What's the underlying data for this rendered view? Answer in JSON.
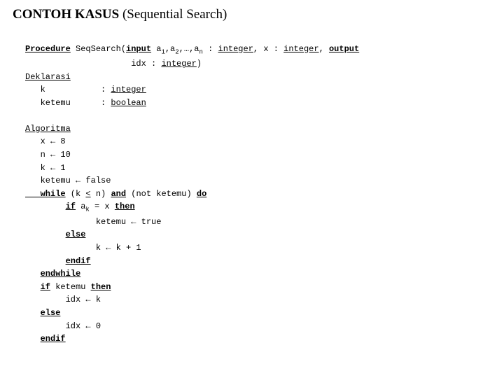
{
  "title": {
    "kasus": "CONTOH KASUS",
    "paren": " (Sequential Search)"
  },
  "proc": {
    "kw_procedure": "Procedure",
    "name": " SeqSearch(",
    "kw_input": "input",
    "sig1_a": " a",
    "sig1_sub1": "1",
    "sig1_c1": ",a",
    "sig1_sub2": "2",
    "sig1_c2": ",…,a",
    "sig1_subn": "n",
    "sig1_colon": " : ",
    "type_integer1": "integer",
    "sig1_c3": ", x : ",
    "type_integer2": "integer",
    "sig1_c4": ", ",
    "kw_output": "output",
    "sig2_pre": "                     idx : ",
    "type_integer3": "integer",
    "sig2_close": ")"
  },
  "dekl": {
    "label": "Deklarasi",
    "l1_pre": "   k           : ",
    "l1_type": "integer",
    "l2_pre": "   ketemu      : ",
    "l2_type": "boolean"
  },
  "algo": {
    "label": "Algoritma",
    "l1": "   x ← 8",
    "l2": "   n ← 10",
    "l3": "   k ← 1",
    "l4": "   ketemu ← false",
    "l5_while": "   while",
    "l5_a": " (k ",
    "l5_le": "<",
    "l5_b": " n) ",
    "l5_and": "and",
    "l5_c": " (not ketemu) ",
    "l5_do": "do",
    "l6_pre": "        ",
    "l6_if": "if",
    "l6_a": " a",
    "l6_sub": "k",
    "l6_b": " = x ",
    "l6_then": "then",
    "l7": "              ketemu ← true",
    "l8_pre": "        ",
    "l8_else": "else",
    "l9": "              k ← k + 1",
    "l10_pre": "        ",
    "l10_endif": "endif",
    "l11_pre": "   ",
    "l11_endwhile": "endwhile",
    "l12_pre": "   ",
    "l12_if": "if",
    "l12_a": " ketemu ",
    "l12_then": "then",
    "l13": "        idx ← k",
    "l14_pre": "   ",
    "l14_else": "else",
    "l15": "        idx ← 0",
    "l16_pre": "   ",
    "l16_endif": "endif"
  }
}
